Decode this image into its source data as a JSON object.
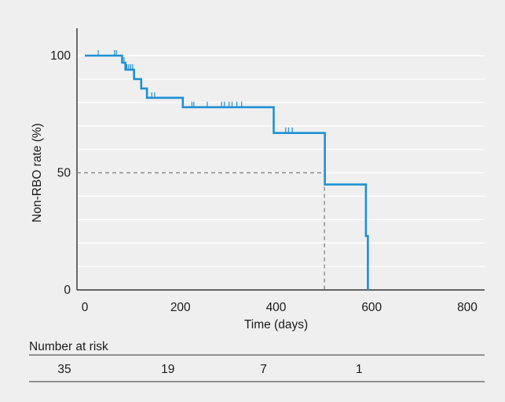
{
  "chart_data": {
    "type": "line",
    "subtype": "kaplan-meier",
    "xlabel": "Time (days)",
    "ylabel": "Non-RBO rate (%)",
    "xlim": [
      0,
      800
    ],
    "ylim": [
      0,
      100
    ],
    "x_ticks": [
      0,
      200,
      400,
      600,
      800
    ],
    "y_ticks": [
      0,
      50,
      100
    ],
    "grid": "horizontal",
    "gridlines_y": [
      10,
      20,
      30,
      40,
      50,
      60,
      70,
      80,
      90,
      100
    ],
    "line_color": "#1e90d4",
    "survival_steps": [
      [
        0,
        100
      ],
      [
        78,
        100
      ],
      [
        78,
        97
      ],
      [
        85,
        97
      ],
      [
        85,
        94
      ],
      [
        103,
        94
      ],
      [
        103,
        90
      ],
      [
        118,
        90
      ],
      [
        118,
        86
      ],
      [
        130,
        86
      ],
      [
        130,
        82
      ],
      [
        205,
        82
      ],
      [
        205,
        78
      ],
      [
        395,
        78
      ],
      [
        395,
        67
      ],
      [
        502,
        67
      ],
      [
        502,
        45
      ],
      [
        588,
        45
      ],
      [
        588,
        23
      ],
      [
        592,
        23
      ],
      [
        592,
        0
      ]
    ],
    "censor_marks": [
      {
        "x": 28,
        "y": 100
      },
      {
        "x": 62,
        "y": 100
      },
      {
        "x": 66,
        "y": 100
      },
      {
        "x": 82,
        "y": 97
      },
      {
        "x": 88,
        "y": 94
      },
      {
        "x": 92,
        "y": 94
      },
      {
        "x": 96,
        "y": 94
      },
      {
        "x": 100,
        "y": 94
      },
      {
        "x": 140,
        "y": 82
      },
      {
        "x": 146,
        "y": 82
      },
      {
        "x": 224,
        "y": 78
      },
      {
        "x": 228,
        "y": 78
      },
      {
        "x": 256,
        "y": 78
      },
      {
        "x": 286,
        "y": 78
      },
      {
        "x": 292,
        "y": 78
      },
      {
        "x": 302,
        "y": 78
      },
      {
        "x": 308,
        "y": 78
      },
      {
        "x": 318,
        "y": 78
      },
      {
        "x": 328,
        "y": 78
      },
      {
        "x": 420,
        "y": 67
      },
      {
        "x": 426,
        "y": 67
      },
      {
        "x": 434,
        "y": 67
      }
    ],
    "median": {
      "x": 502,
      "y": 50,
      "style": "dashed",
      "color": "#8a8a8a"
    },
    "risk_table": {
      "title": "Number at risk",
      "times": [
        0,
        200,
        400,
        600
      ],
      "values": [
        "35",
        "19",
        "7",
        "1"
      ]
    }
  }
}
